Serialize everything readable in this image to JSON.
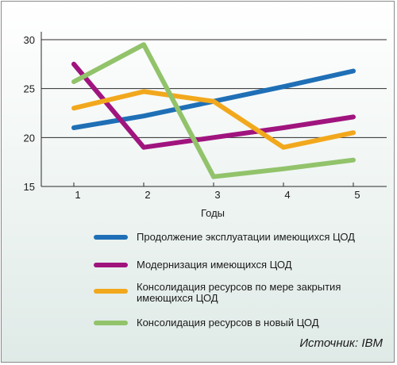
{
  "chart_data": {
    "type": "line",
    "title": "",
    "xlabel": "Годы",
    "ylabel": "",
    "categories": [
      "1",
      "2",
      "3",
      "4",
      "5"
    ],
    "yticks": [
      15,
      20,
      25,
      30
    ],
    "ylim": [
      15,
      30
    ],
    "grid": "horizontal",
    "legend_position": "bottom",
    "series": [
      {
        "name": "Продолжение эксплуатации имеющихся ЦОД",
        "color": "#1f6fb6",
        "values": [
          21.0,
          22.2,
          23.7,
          25.2,
          26.8
        ]
      },
      {
        "name": "Модернизация имеющихся ЦОД",
        "color": "#a0147e",
        "values": [
          27.5,
          19.0,
          20.0,
          21.0,
          22.1
        ]
      },
      {
        "name": "Консолидация ресурсов по мере закрытия имеющихся ЦОД",
        "color": "#f2a81d",
        "values": [
          23.0,
          24.7,
          23.7,
          19.0,
          20.5
        ]
      },
      {
        "name": "Консолидация ресурсов в новый ЦОД",
        "color": "#92c36b",
        "values": [
          25.7,
          29.5,
          16.0,
          16.8,
          17.7
        ]
      }
    ],
    "legend_lines": [
      [
        "Продолжение эксплуатации имеющихся ЦОД"
      ],
      [
        "Модернизация имеющихся ЦОД"
      ],
      [
        "Консолидация ресурсов по мере закрытия",
        "имеющихся ЦОД"
      ],
      [
        "Консолидация ресурсов в новый ЦОД"
      ]
    ]
  },
  "source": "Источник: IBM"
}
